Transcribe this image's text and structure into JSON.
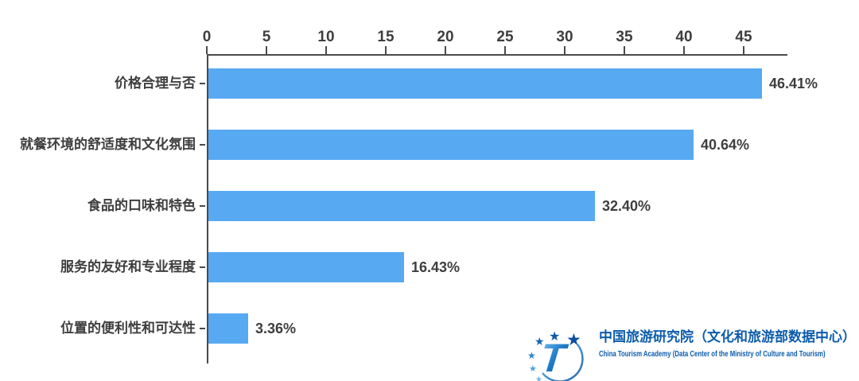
{
  "chart_data": {
    "type": "bar",
    "orientation": "horizontal",
    "title": "",
    "categories": [
      "价格合理与否",
      "就餐环境的舒适度和文化氛围",
      "食品的口味和特色",
      "服务的友好和专业程度",
      "位置的便利性和可达性"
    ],
    "values": [
      46.41,
      40.64,
      32.4,
      16.43,
      3.36
    ],
    "value_labels": [
      "46.41%",
      "40.64%",
      "32.40%",
      "16.43%",
      "3.36%"
    ],
    "x_ticks": [
      0,
      5,
      10,
      15,
      20,
      25,
      30,
      35,
      40,
      45
    ],
    "xlim": [
      0,
      48.7
    ],
    "grid": false,
    "legend": "none",
    "bar_color": "#57A9F2",
    "axis_color": "#4A4A4A",
    "text_color": "#3E3E3E"
  },
  "footer_logo": {
    "org_name_zh": "中国旅游研究院（文化和旅游部数据中心）",
    "org_name_en": "China Tourism Academy (Data Center of the Ministry of Culture and Tourism)",
    "brand_color": "#0D5CAC"
  }
}
